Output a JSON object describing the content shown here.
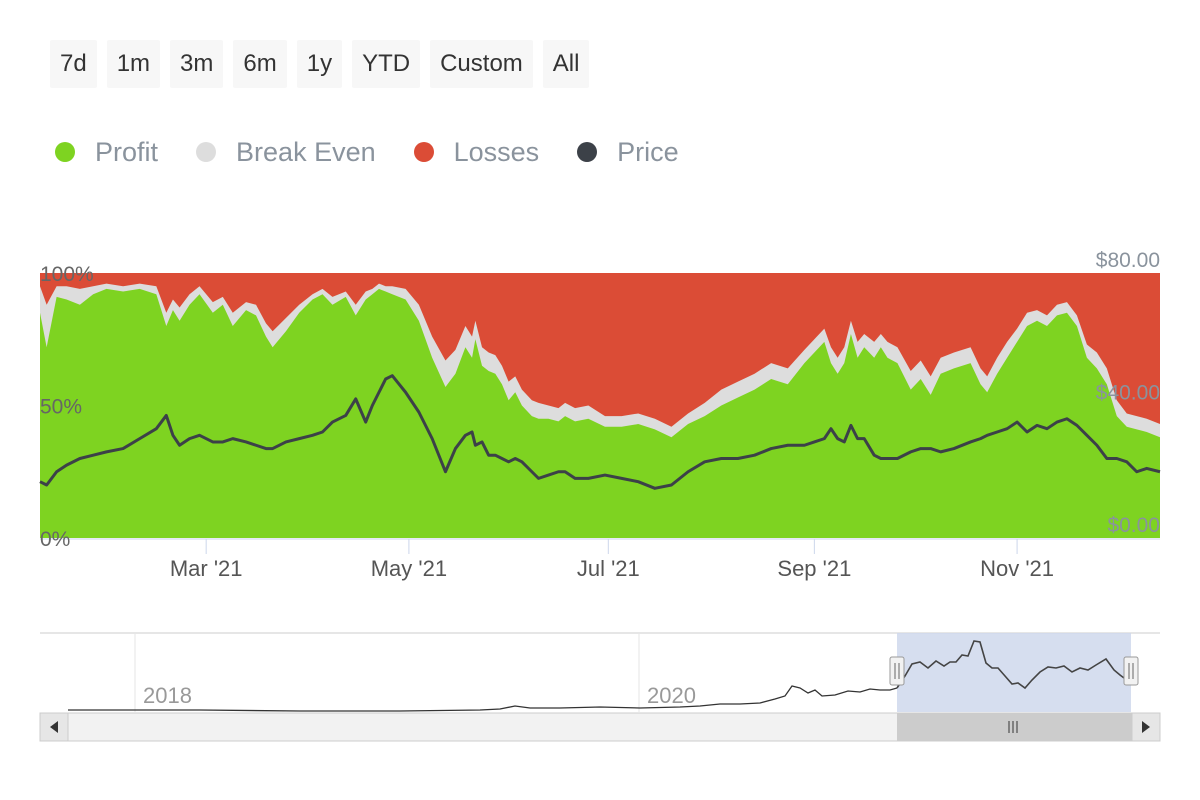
{
  "range_selector": {
    "buttons": [
      "7d",
      "1m",
      "3m",
      "6m",
      "1y",
      "YTD",
      "Custom",
      "All"
    ]
  },
  "colors": {
    "profit": "#7ed321",
    "break_even": "#dddddd",
    "losses": "#db4c36",
    "price": "#3c4148",
    "navigator_mask": "#cfd8ec"
  },
  "chart_data": {
    "type": "area",
    "stacking": "percent",
    "title": "",
    "legend": [
      {
        "name": "Profit",
        "color": "#7ed321"
      },
      {
        "name": "Break Even",
        "color": "#dddddd"
      },
      {
        "name": "Losses",
        "color": "#db4c36"
      },
      {
        "name": "Price",
        "color": "#3c4148"
      }
    ],
    "y_left": {
      "range": [
        0,
        100
      ],
      "ticks": [
        "0%",
        "50%",
        "100%"
      ],
      "tick_values": [
        0,
        50,
        100
      ]
    },
    "y_right": {
      "range": [
        0,
        80
      ],
      "ticks": [
        "$0.00",
        "$40.00",
        "$80.00"
      ],
      "tick_values": [
        0,
        40,
        80
      ]
    },
    "x_range_days": [
      0,
      337
    ],
    "x_ticks": [
      {
        "label": "Mar '21",
        "day": 50
      },
      {
        "label": "May '21",
        "day": 111
      },
      {
        "label": "Jul '21",
        "day": 171
      },
      {
        "label": "Sep '21",
        "day": 233
      },
      {
        "label": "Nov '21",
        "day": 294
      }
    ],
    "x": [
      0,
      2,
      5,
      8,
      12,
      16,
      20,
      25,
      30,
      35,
      38,
      40,
      42,
      45,
      48,
      52,
      55,
      58,
      62,
      65,
      68,
      70,
      74,
      78,
      82,
      85,
      88,
      92,
      95,
      98,
      100,
      102,
      104,
      106,
      110,
      114,
      118,
      122,
      125,
      128,
      130,
      131,
      133,
      135,
      137,
      139,
      141,
      143,
      145,
      148,
      150,
      153,
      156,
      158,
      161,
      165,
      170,
      175,
      180,
      185,
      190,
      195,
      200,
      205,
      210,
      215,
      220,
      225,
      230,
      233,
      236,
      238,
      240,
      242,
      244,
      246,
      248,
      251,
      253,
      255,
      258,
      262,
      265,
      268,
      271,
      275,
      280,
      283,
      285,
      288,
      291,
      294,
      297,
      300,
      303,
      306,
      309,
      312,
      315,
      318,
      321,
      324,
      327,
      330,
      333,
      337
    ],
    "series": [
      {
        "name": "Profit",
        "unit": "%",
        "values": [
          85,
          72,
          91,
          90,
          88,
          92,
          94,
          93,
          94,
          92,
          80,
          86,
          82,
          88,
          92,
          85,
          88,
          80,
          86,
          84,
          76,
          72,
          78,
          85,
          90,
          92,
          88,
          91,
          84,
          90,
          92,
          94,
          93,
          92,
          90,
          82,
          68,
          57,
          62,
          72,
          68,
          75,
          65,
          63,
          62,
          58,
          52,
          55,
          50,
          46,
          45,
          45,
          44,
          46,
          44,
          45,
          42,
          42,
          43,
          41,
          38,
          43,
          46,
          50,
          53,
          56,
          60,
          58,
          66,
          70,
          74,
          66,
          62,
          66,
          77,
          68,
          72,
          68,
          72,
          68,
          66,
          56,
          60,
          54,
          62,
          64,
          66,
          58,
          55,
          62,
          68,
          74,
          80,
          82,
          80,
          84,
          85,
          80,
          68,
          64,
          58,
          46,
          42,
          41,
          40,
          38
        ]
      },
      {
        "name": "Break Even",
        "unit": "%",
        "values": [
          10,
          16,
          4,
          5,
          6,
          3,
          2,
          2,
          2,
          3,
          5,
          4,
          5,
          4,
          3,
          4,
          3,
          5,
          3,
          4,
          5,
          6,
          5,
          3,
          2,
          2,
          3,
          2,
          4,
          3,
          2,
          2,
          2,
          3,
          4,
          6,
          8,
          10,
          9,
          8,
          8,
          7,
          7,
          7,
          7,
          7,
          7,
          6,
          6,
          6,
          6,
          5,
          5,
          5,
          5,
          5,
          4,
          4,
          4,
          4,
          4,
          4,
          5,
          6,
          6,
          6,
          6,
          6,
          5,
          5,
          5,
          6,
          6,
          6,
          5,
          6,
          5,
          6,
          5,
          6,
          6,
          7,
          7,
          7,
          6,
          6,
          6,
          6,
          6,
          6,
          6,
          5,
          5,
          4,
          4,
          4,
          4,
          4,
          5,
          6,
          6,
          6,
          5,
          5,
          5,
          5
        ]
      },
      {
        "name": "Losses",
        "unit": "%",
        "values": [
          5,
          12,
          5,
          5,
          6,
          5,
          4,
          5,
          4,
          5,
          15,
          10,
          13,
          8,
          5,
          11,
          9,
          15,
          11,
          12,
          19,
          22,
          17,
          12,
          8,
          6,
          9,
          7,
          12,
          7,
          6,
          4,
          5,
          5,
          6,
          12,
          24,
          33,
          29,
          20,
          24,
          18,
          28,
          30,
          31,
          35,
          41,
          39,
          44,
          48,
          49,
          50,
          51,
          49,
          51,
          50,
          54,
          54,
          53,
          55,
          58,
          53,
          49,
          44,
          41,
          38,
          34,
          36,
          29,
          25,
          21,
          28,
          32,
          28,
          18,
          26,
          23,
          26,
          23,
          26,
          28,
          37,
          33,
          39,
          32,
          30,
          28,
          36,
          39,
          32,
          26,
          21,
          15,
          14,
          16,
          12,
          11,
          16,
          27,
          30,
          36,
          48,
          53,
          54,
          55,
          57
        ]
      },
      {
        "name": "Price",
        "unit": "$",
        "axis": "right",
        "values": [
          17,
          16,
          20,
          22,
          24,
          25,
          26,
          27,
          30,
          33,
          37,
          31,
          28,
          30,
          31,
          29,
          29,
          30,
          29,
          28,
          27,
          27,
          29,
          30,
          31,
          32,
          35,
          37,
          42,
          35,
          40,
          44,
          48,
          49,
          44,
          38,
          30,
          20,
          27,
          31,
          32,
          28,
          29,
          25,
          25,
          24,
          23,
          24,
          23,
          20,
          18,
          19,
          20,
          20,
          18,
          18,
          19,
          18,
          17,
          15,
          16,
          20,
          23,
          24,
          24,
          25,
          27,
          28,
          28,
          29,
          30,
          33,
          30,
          29,
          34,
          30,
          30,
          25,
          24,
          24,
          24,
          26,
          27,
          27,
          26,
          27,
          29,
          30,
          31,
          32,
          33,
          35,
          32,
          34,
          33,
          35,
          36,
          34,
          31,
          28,
          24,
          24,
          23,
          20,
          21,
          20
        ]
      }
    ],
    "navigator": {
      "x_ticks": [
        "2018",
        "2020"
      ]
    }
  }
}
